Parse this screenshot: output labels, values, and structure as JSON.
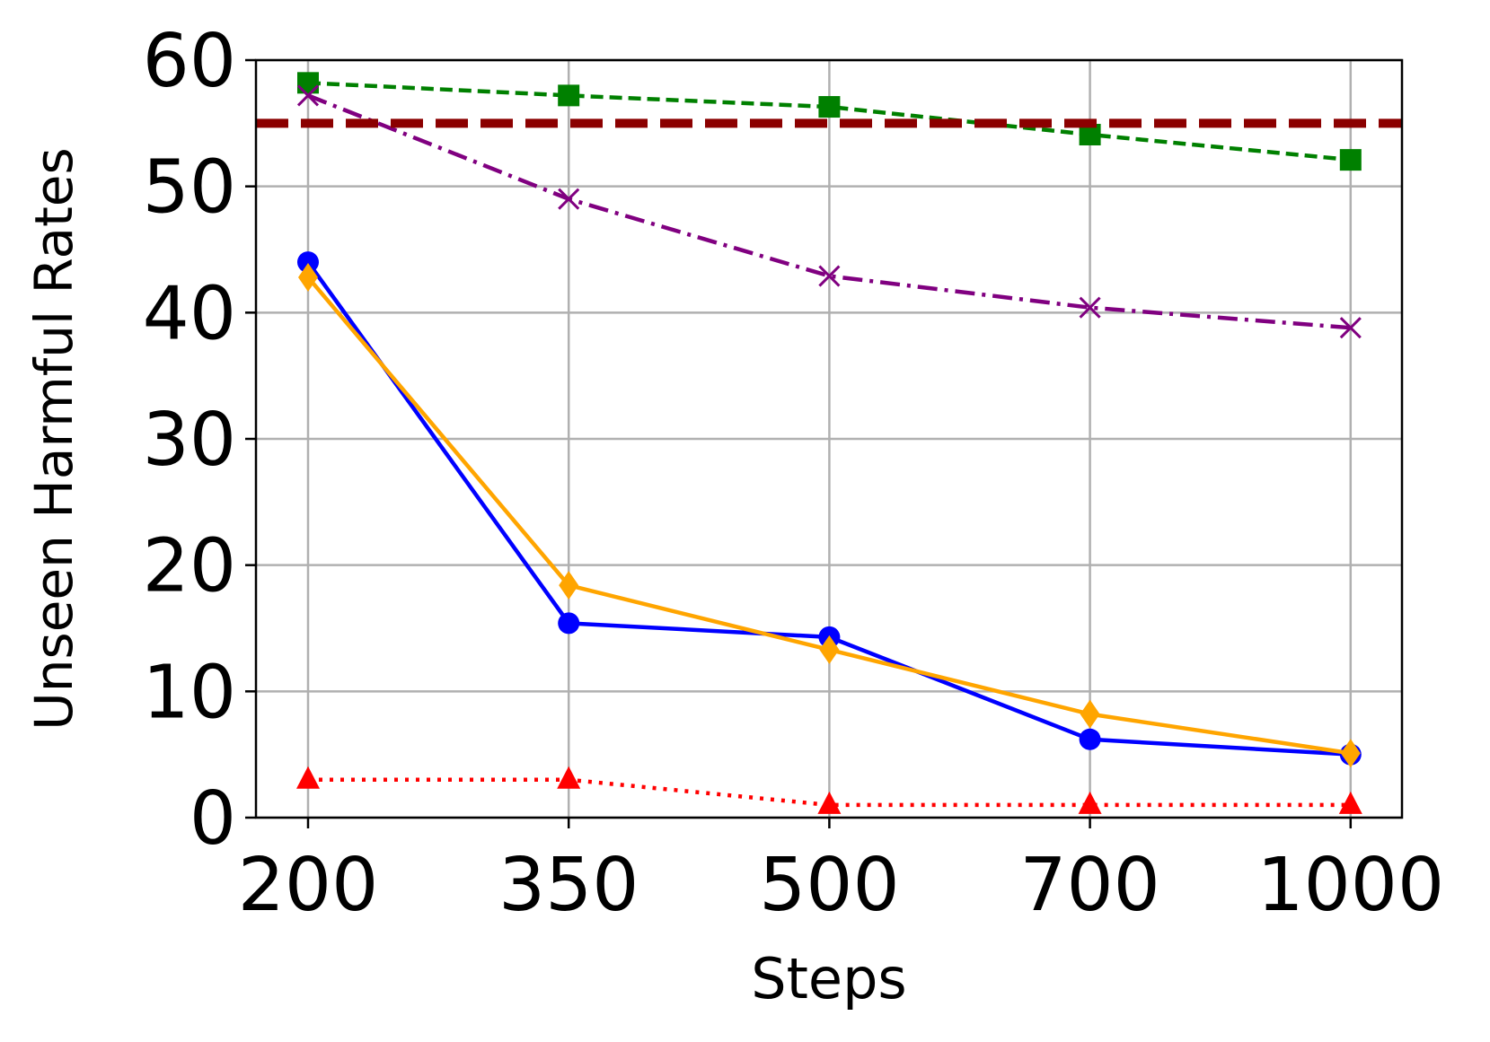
{
  "chart_data": {
    "type": "line",
    "xlabel": "Steps",
    "ylabel": "Unseen Harmful Rates",
    "categories": [
      "200",
      "350",
      "500",
      "700",
      "1000"
    ],
    "series": [
      {
        "color": "#008000",
        "linestyle": "dashed",
        "marker": "square",
        "values": [
          58.2,
          57.2,
          56.3,
          54.1,
          52.1
        ]
      },
      {
        "color": "#800080",
        "linestyle": "dashdot",
        "marker": "x",
        "values": [
          57.2,
          49.0,
          42.9,
          40.4,
          38.8
        ]
      },
      {
        "color": "#0000ff",
        "linestyle": "solid",
        "marker": "circle",
        "values": [
          44.0,
          15.4,
          14.3,
          6.2,
          5.0
        ]
      },
      {
        "color": "#ffa500",
        "linestyle": "solid",
        "marker": "diamond",
        "values": [
          42.8,
          18.4,
          13.3,
          8.2,
          5.1
        ]
      },
      {
        "color": "#ff0000",
        "linestyle": "dotted",
        "marker": "triangle",
        "values": [
          3,
          3,
          1,
          1,
          1
        ]
      }
    ],
    "hlines": [
      {
        "value": 55,
        "color": "#8b0000"
      }
    ],
    "ylim": [
      0,
      60
    ],
    "yticks": [
      0,
      10,
      20,
      30,
      40,
      50,
      60
    ],
    "grid": true
  }
}
